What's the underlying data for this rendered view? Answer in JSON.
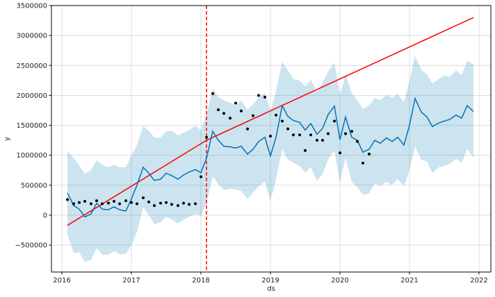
{
  "chart_data": {
    "type": "line",
    "xlabel": "ds",
    "ylabel": "y",
    "xlim": [
      2015.85,
      2022.17
    ],
    "ylim": [
      -950000,
      3500000
    ],
    "grid": true,
    "x_ticks": [
      2016,
      2017,
      2018,
      2019,
      2020,
      2021,
      2022
    ],
    "x_tick_labels": [
      "2016",
      "2017",
      "2018",
      "2019",
      "2020",
      "2021",
      "2022"
    ],
    "y_ticks": [
      -500000,
      0,
      500000,
      1000000,
      1500000,
      2000000,
      2500000,
      3000000,
      3500000
    ],
    "y_tick_labels": [
      "−500000",
      "0",
      "500000",
      "1000000",
      "1500000",
      "2000000",
      "2500000",
      "3000000",
      "3500000"
    ],
    "colors": {
      "forecast": "#0072b2",
      "interval": "#0072b2",
      "observed": "#000000",
      "trend": "#ff0000",
      "changepoint": "#ff0000"
    },
    "changepoint": 2018.08,
    "trend": {
      "x": [
        2016.08,
        2018.08,
        2021.92
      ],
      "y": [
        -170000,
        1250000,
        3300000
      ]
    },
    "observed": {
      "x": [
        2016.08,
        2016.17,
        2016.25,
        2016.33,
        2016.42,
        2016.5,
        2016.58,
        2016.67,
        2016.75,
        2016.83,
        2016.92,
        2017.0,
        2017.08,
        2017.17,
        2017.25,
        2017.33,
        2017.42,
        2017.5,
        2017.58,
        2017.67,
        2017.75,
        2017.83,
        2017.92,
        2018.0,
        2018.08,
        2018.17,
        2018.25,
        2018.33,
        2018.42,
        2018.5,
        2018.58,
        2018.67,
        2018.75,
        2018.83,
        2018.92,
        2019.0,
        2019.08,
        2019.17,
        2019.25,
        2019.33,
        2019.42,
        2019.5,
        2019.58,
        2019.67,
        2019.75,
        2019.83,
        2019.92,
        2020.0,
        2020.08,
        2020.17,
        2020.25,
        2020.33,
        2020.42
      ],
      "y": [
        260000,
        190000,
        210000,
        230000,
        190000,
        240000,
        190000,
        200000,
        230000,
        190000,
        240000,
        210000,
        190000,
        290000,
        220000,
        160000,
        200000,
        210000,
        180000,
        160000,
        200000,
        180000,
        190000,
        640000,
        1300000,
        2030000,
        1760000,
        1700000,
        1620000,
        1870000,
        1740000,
        1440000,
        1660000,
        2000000,
        1970000,
        1320000,
        1670000,
        1570000,
        1440000,
        1340000,
        1340000,
        1080000,
        1340000,
        1250000,
        1250000,
        1360000,
        1570000,
        1040000,
        1360000,
        1400000,
        1230000,
        870000,
        1020000
      ]
    },
    "series": [
      {
        "x": [
          2016.08,
          2016.17,
          2016.25,
          2016.33,
          2016.42,
          2016.5,
          2016.58,
          2016.67,
          2016.75,
          2016.83,
          2016.92,
          2017.0,
          2017.08,
          2017.17,
          2017.25,
          2017.33,
          2017.42,
          2017.5,
          2017.58,
          2017.67,
          2017.75,
          2017.83,
          2017.92,
          2018.0,
          2018.08,
          2018.17,
          2018.25,
          2018.33,
          2018.42,
          2018.5,
          2018.58,
          2018.67,
          2018.75,
          2018.83,
          2018.92,
          2019.0,
          2019.08,
          2019.17,
          2019.25,
          2019.33,
          2019.42,
          2019.5,
          2019.58,
          2019.67,
          2019.75,
          2019.83,
          2019.92,
          2020.0,
          2020.08,
          2020.17,
          2020.25,
          2020.33,
          2020.42,
          2020.5,
          2020.58,
          2020.67,
          2020.75,
          2020.83,
          2020.92,
          2021.0,
          2021.08,
          2021.17,
          2021.25,
          2021.33,
          2021.42,
          2021.5,
          2021.58,
          2021.67,
          2021.75,
          2021.83,
          2021.92
        ],
        "y": [
          370000,
          160000,
          100000,
          -30000,
          20000,
          200000,
          100000,
          90000,
          140000,
          90000,
          70000,
          270000,
          500000,
          800000,
          700000,
          580000,
          600000,
          700000,
          660000,
          600000,
          670000,
          720000,
          760000,
          710000,
          950000,
          1400000,
          1250000,
          1150000,
          1140000,
          1120000,
          1150000,
          1020000,
          1100000,
          1230000,
          1300000,
          990000,
          1300000,
          1830000,
          1650000,
          1580000,
          1550000,
          1420000,
          1530000,
          1350000,
          1450000,
          1680000,
          1820000,
          1260000,
          1640000,
          1300000,
          1250000,
          1050000,
          1100000,
          1250000,
          1200000,
          1290000,
          1230000,
          1300000,
          1170000,
          1500000,
          1950000,
          1720000,
          1640000,
          1480000,
          1540000,
          1570000,
          1600000,
          1670000,
          1620000,
          1830000,
          1730000
        ],
        "lower": [
          -330000,
          -630000,
          -620000,
          -780000,
          -750000,
          -550000,
          -660000,
          -660000,
          -600000,
          -650000,
          -650000,
          -500000,
          -280000,
          130000,
          0,
          -150000,
          -120000,
          -30000,
          -70000,
          -140000,
          -80000,
          -30000,
          20000,
          -10000,
          200000,
          650000,
          520000,
          420000,
          440000,
          430000,
          400000,
          270000,
          380000,
          480000,
          560000,
          240000,
          600000,
          1100000,
          930000,
          880000,
          820000,
          710000,
          800000,
          570000,
          690000,
          930000,
          1080000,
          540000,
          960000,
          550000,
          470000,
          340000,
          360000,
          530000,
          490000,
          560000,
          500000,
          600000,
          480000,
          760000,
          1150000,
          920000,
          900000,
          700000,
          800000,
          820000,
          860000,
          940000,
          880000,
          1100000,
          960000
        ],
        "upper": [
          1070000,
          950000,
          830000,
          690000,
          750000,
          920000,
          840000,
          800000,
          840000,
          800000,
          800000,
          1000000,
          1170000,
          1490000,
          1410000,
          1300000,
          1290000,
          1400000,
          1410000,
          1330000,
          1380000,
          1420000,
          1490000,
          1420000,
          1680000,
          2120000,
          1970000,
          1920000,
          1880000,
          1830000,
          1920000,
          1760000,
          1850000,
          1960000,
          2040000,
          1740000,
          2070000,
          2560000,
          2420000,
          2270000,
          2250000,
          2150000,
          2260000,
          2060000,
          2210000,
          2400000,
          2550000,
          2000000,
          2350000,
          2030000,
          1920000,
          1770000,
          1830000,
          1960000,
          1920000,
          2010000,
          1960000,
          2020000,
          1890000,
          2240000,
          2660000,
          2430000,
          2350000,
          2200000,
          2270000,
          2330000,
          2310000,
          2420000,
          2340000,
          2580000,
          2510000
        ]
      }
    ]
  }
}
